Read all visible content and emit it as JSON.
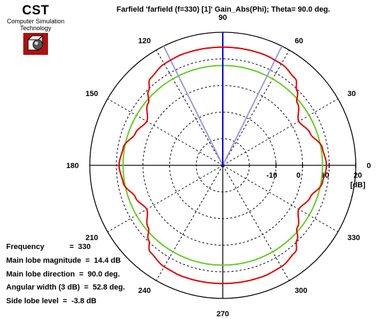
{
  "logo": {
    "brand": "CST",
    "line1": "Computer Simulation",
    "line2": "Technology"
  },
  "chart_data": {
    "type": "polar-line",
    "title": "Farfield 'farfield (f=330) [1]' Gain_Abs(Phi); Theta=  90.0 deg.",
    "unit": "[dB]",
    "radial_range": [
      -30,
      20
    ],
    "radial_ticks": [
      -10,
      0,
      10,
      20
    ],
    "radial_grid": [
      -20,
      -10,
      0,
      10
    ],
    "angle_ticks": [
      0,
      30,
      60,
      90,
      120,
      150,
      180,
      210,
      240,
      270,
      300,
      330
    ],
    "grid": true,
    "main_lobe_direction_deg": 90,
    "beam_edges_deg": [
      63.6,
      116.4
    ],
    "reference_circle_db": 7.5,
    "series": [
      {
        "color": "#e00000",
        "phi_deg": [
          0,
          10,
          20,
          30,
          40,
          45,
          50,
          60,
          70,
          80,
          90
        ],
        "gain_db": [
          9.0,
          8.0,
          5.0,
          3.0,
          6.5,
          9.5,
          12.5,
          14.0,
          14.4,
          14.4,
          14.4
        ]
      }
    ]
  },
  "info": {
    "frequency": "Frequency            =  330",
    "magnitude": "Main lobe magnitude  =  14.4 dB",
    "direction": "Main lobe direction  =  90.0 deg.",
    "width": "Angular width (3 dB)  =  52.8 deg.",
    "sidelobe": "Side lobe level  =  -3.8 dB"
  }
}
